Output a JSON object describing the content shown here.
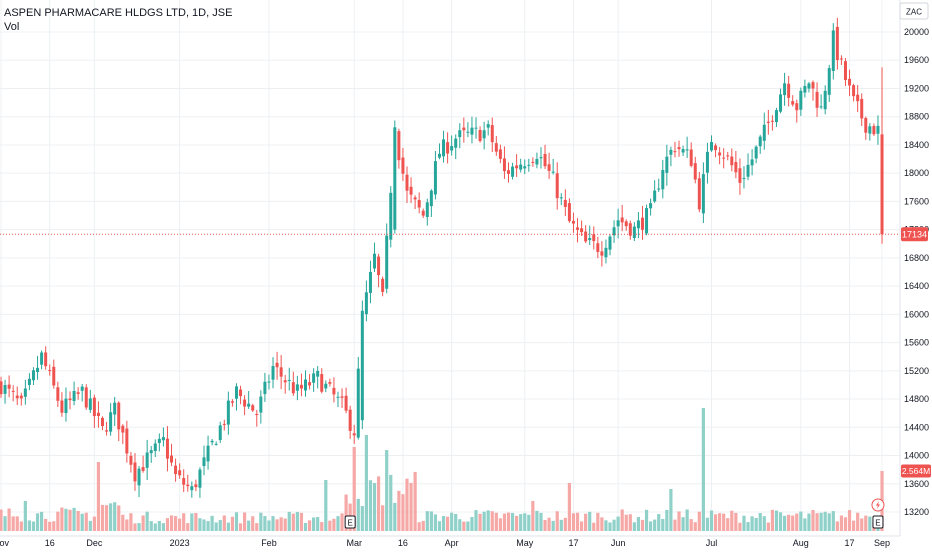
{
  "header": {
    "title": "ASPEN PHARMACARE HLDGS LTD, 1D, JSE",
    "volume_label": "Vol",
    "currency": "ZAC"
  },
  "colors": {
    "up": "#26a69a",
    "down": "#ef5350",
    "up_volume": "#8fd1c9",
    "down_volume": "#f5a8a6",
    "grid": "#edf0f3",
    "price_line": "#ef5350"
  },
  "price_tag": {
    "value": "17134"
  },
  "volume_tag": {
    "value": "2.564M"
  },
  "event_markers": [
    {
      "label": "E",
      "date_label": "Mar"
    },
    {
      "label": "E",
      "date_label": "Sep"
    }
  ],
  "chart_data": {
    "type": "candlestick",
    "y_axis": {
      "side": "right",
      "ticks": [
        13200,
        13600,
        14000,
        14400,
        14800,
        15200,
        15600,
        16000,
        16400,
        16800,
        17200,
        17600,
        18000,
        18400,
        18800,
        19200,
        19600,
        20000
      ],
      "range": [
        12950,
        20200
      ]
    },
    "x_axis": {
      "ticks": [
        "Nov",
        "16",
        "Dec",
        "2023",
        "Feb",
        "Mar",
        "16",
        "Apr",
        "May",
        "17",
        "Jun",
        "Jul",
        "Aug",
        "17",
        "Sep"
      ]
    },
    "grid": true,
    "last_price": 17134,
    "last_volume": "2.564M",
    "close_path": [
      {
        "t": 0,
        "v": 15000
      },
      {
        "t": 5,
        "v": 14700
      },
      {
        "t": 10,
        "v": 15400
      },
      {
        "t": 15,
        "v": 14650
      },
      {
        "t": 20,
        "v": 14900
      },
      {
        "t": 25,
        "v": 14350
      },
      {
        "t": 28,
        "v": 14650
      },
      {
        "t": 33,
        "v": 13750
      },
      {
        "t": 40,
        "v": 14200
      },
      {
        "t": 43,
        "v": 13700
      },
      {
        "t": 47,
        "v": 13500
      },
      {
        "t": 52,
        "v": 14150
      },
      {
        "t": 58,
        "v": 14900
      },
      {
        "t": 63,
        "v": 14600
      },
      {
        "t": 67,
        "v": 15250
      },
      {
        "t": 73,
        "v": 14900
      },
      {
        "t": 78,
        "v": 15100
      },
      {
        "t": 84,
        "v": 14700
      },
      {
        "t": 87,
        "v": 14350
      },
      {
        "t": 89,
        "v": 15950
      },
      {
        "t": 92,
        "v": 16800
      },
      {
        "t": 94,
        "v": 16200
      },
      {
        "t": 97,
        "v": 18600
      },
      {
        "t": 100,
        "v": 17700
      },
      {
        "t": 104,
        "v": 17400
      },
      {
        "t": 108,
        "v": 18300
      },
      {
        "t": 112,
        "v": 18500
      },
      {
        "t": 116,
        "v": 18550
      },
      {
        "t": 120,
        "v": 18600
      },
      {
        "t": 124,
        "v": 18000
      },
      {
        "t": 128,
        "v": 18150
      },
      {
        "t": 132,
        "v": 18300
      },
      {
        "t": 136,
        "v": 17900
      },
      {
        "t": 140,
        "v": 17300
      },
      {
        "t": 144,
        "v": 17000
      },
      {
        "t": 148,
        "v": 16950
      },
      {
        "t": 152,
        "v": 17350
      },
      {
        "t": 156,
        "v": 17200
      },
      {
        "t": 160,
        "v": 17450
      },
      {
        "t": 163,
        "v": 18100
      },
      {
        "t": 166,
        "v": 18400
      },
      {
        "t": 170,
        "v": 18200
      },
      {
        "t": 172,
        "v": 17600
      },
      {
        "t": 175,
        "v": 18500
      },
      {
        "t": 179,
        "v": 18200
      },
      {
        "t": 182,
        "v": 17900
      },
      {
        "t": 185,
        "v": 18200
      },
      {
        "t": 189,
        "v": 18700
      },
      {
        "t": 193,
        "v": 19300
      },
      {
        "t": 196,
        "v": 18950
      },
      {
        "t": 199,
        "v": 19300
      },
      {
        "t": 202,
        "v": 18900
      },
      {
        "t": 205,
        "v": 19900
      },
      {
        "t": 207,
        "v": 19500
      },
      {
        "t": 210,
        "v": 19000
      },
      {
        "t": 213,
        "v": 18700
      },
      {
        "t": 216,
        "v": 18600
      },
      {
        "t": 217,
        "v": 17134
      }
    ],
    "volume_bars": [
      {
        "range": [
          0,
          24
        ],
        "level": 0.55,
        "spikes": [
          [
            6,
            1.0
          ]
        ]
      },
      {
        "range": [
          24,
          30
        ],
        "level": 0.85,
        "spikes": [
          [
            0,
            2.3
          ]
        ]
      },
      {
        "range": [
          30,
          85
        ],
        "level": 0.45,
        "spikes": [
          [
            50,
            1.7
          ]
        ]
      },
      {
        "range": [
          85,
          103
        ],
        "level": 1.4,
        "spikes": [
          [
            2,
            2.8
          ],
          [
            5,
            3.2
          ],
          [
            10,
            2.7
          ]
        ]
      },
      {
        "range": [
          103,
          216
        ],
        "level": 0.5,
        "spikes": [
          [
            28,
            1.0
          ],
          [
            37,
            1.6
          ],
          [
            62,
            1.4
          ],
          [
            70,
            4.1
          ]
        ]
      }
    ]
  }
}
